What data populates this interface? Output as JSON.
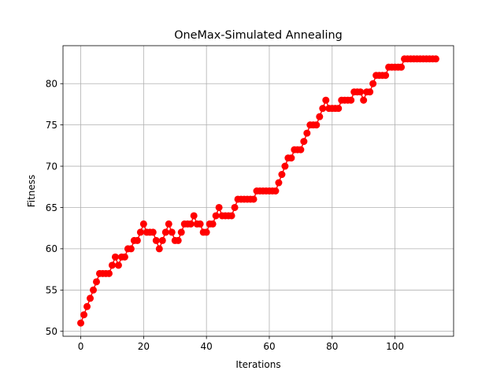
{
  "chart_data": {
    "type": "line",
    "title": "OneMax-Simulated Annealing",
    "xlabel": "Iterations",
    "ylabel": "Fitness",
    "xlim": [
      -5.65,
      118.65
    ],
    "ylim": [
      49.4,
      84.6
    ],
    "xticks": [
      0,
      20,
      40,
      60,
      80,
      100
    ],
    "yticks": [
      50,
      55,
      60,
      65,
      70,
      75,
      80
    ],
    "grid": true,
    "series": [
      {
        "color": "#ff0000",
        "marker": "circle",
        "x": [
          0,
          1,
          2,
          3,
          4,
          5,
          6,
          7,
          8,
          9,
          10,
          11,
          12,
          13,
          14,
          15,
          16,
          17,
          18,
          19,
          20,
          21,
          22,
          23,
          24,
          25,
          26,
          27,
          28,
          29,
          30,
          31,
          32,
          33,
          34,
          35,
          36,
          37,
          38,
          39,
          40,
          41,
          42,
          43,
          44,
          45,
          46,
          47,
          48,
          49,
          50,
          51,
          52,
          53,
          54,
          55,
          56,
          57,
          58,
          59,
          60,
          61,
          62,
          63,
          64,
          65,
          66,
          67,
          68,
          69,
          70,
          71,
          72,
          73,
          74,
          75,
          76,
          77,
          78,
          79,
          80,
          81,
          82,
          83,
          84,
          85,
          86,
          87,
          88,
          89,
          90,
          91,
          92,
          93,
          94,
          95,
          96,
          97,
          98,
          99,
          100,
          101,
          102,
          103,
          104,
          105,
          106,
          107,
          108,
          109,
          110,
          111,
          112,
          113
        ],
        "y": [
          51,
          52,
          53,
          54,
          55,
          56,
          57,
          57,
          57,
          57,
          58,
          59,
          58,
          59,
          59,
          60,
          60,
          61,
          61,
          62,
          63,
          62,
          62,
          62,
          61,
          60,
          61,
          62,
          63,
          62,
          61,
          61,
          62,
          63,
          63,
          63,
          64,
          63,
          63,
          62,
          62,
          63,
          63,
          64,
          65,
          64,
          64,
          64,
          64,
          65,
          66,
          66,
          66,
          66,
          66,
          66,
          67,
          67,
          67,
          67,
          67,
          67,
          67,
          68,
          69,
          70,
          71,
          71,
          72,
          72,
          72,
          73,
          74,
          75,
          75,
          75,
          76,
          77,
          78,
          77,
          77,
          77,
          77,
          78,
          78,
          78,
          78,
          79,
          79,
          79,
          78,
          79,
          79,
          80,
          81,
          81,
          81,
          81,
          82,
          82,
          82,
          82,
          82,
          83,
          83,
          83,
          83,
          83,
          83,
          83,
          83,
          83,
          83,
          83
        ]
      }
    ]
  }
}
